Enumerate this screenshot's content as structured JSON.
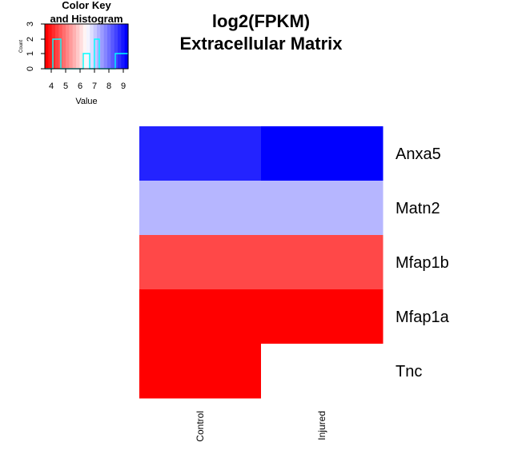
{
  "title_line1": "log2(FPKM)",
  "title_line2": "Extracellular Matrix",
  "colorkey": {
    "title_line1": "Color Key",
    "title_line2": "and Histogram",
    "xlabel": "Value",
    "ylabel": "Count",
    "x_ticks": [
      "4",
      "5",
      "6",
      "7",
      "8",
      "9"
    ],
    "y_ticks": [
      "0",
      "1",
      "2",
      "3"
    ],
    "color_low": "#ff0000",
    "color_mid": "#ffffff",
    "color_high": "#0000ff",
    "histogram_color": "#00ffff"
  },
  "chart_data": {
    "type": "heatmap",
    "rows": [
      "Anxa5",
      "Matn2",
      "Mfap1b",
      "Mfap1a",
      "Tnc"
    ],
    "columns": [
      "Control",
      "Injured"
    ],
    "cell_colors": [
      [
        "#2323ff",
        "#0000ff"
      ],
      [
        "#b6b6ff",
        "#b6b6ff"
      ],
      [
        "#ff4848",
        "#ff4848"
      ],
      [
        "#ff0000",
        "#ff0000"
      ],
      [
        "#ff0000",
        "#ffffff"
      ]
    ]
  }
}
